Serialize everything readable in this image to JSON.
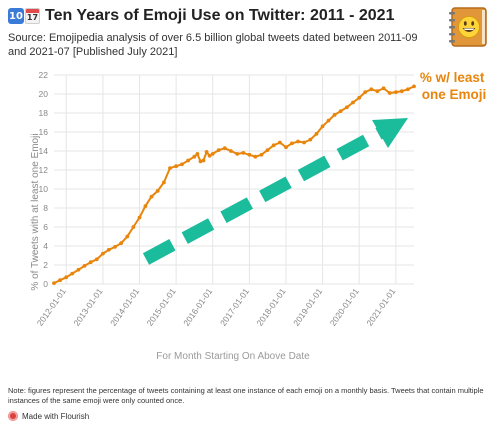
{
  "header": {
    "title": "Ten Years of Emoji Use on Twitter: 2011 - 2021",
    "icon_number": "10",
    "icon_calendar_day": "17",
    "subtitle": "Source: Emojipedia analysis of over 6.5 billion global tweets dated between 2011-09 and 2021-07 [Published July 2021]",
    "logo_icon": "notebook-grinning-face-icon"
  },
  "footer": {
    "note": "Note: figures represent the percentage of tweets containing at least one instance of each emoji on a monthly basis. Tweets that contain multiple instances of the same emoji were only counted once.",
    "credit": "Made with Flourish"
  },
  "colors": {
    "line": "#e8850c",
    "arrow": "#1abc9c",
    "annotation": "#e8850c",
    "grid": "#e6e6e6"
  },
  "chart_data": {
    "type": "line",
    "title": "Ten Years of Emoji Use on Twitter: 2011 - 2021",
    "xlabel": "For Month Starting On Above Date",
    "ylabel": "% of Tweets with at least one Emoji",
    "ylim": [
      0,
      22
    ],
    "yticks": [
      0,
      2,
      4,
      6,
      8,
      10,
      12,
      14,
      16,
      18,
      20,
      22
    ],
    "xlim": [
      "2011-09-01",
      "2021-07-01"
    ],
    "xticks": [
      "2012-01-01",
      "2013-01-01",
      "2014-01-01",
      "2015-01-01",
      "2016-01-01",
      "2017-01-01",
      "2018-01-01",
      "2019-01-01",
      "2020-01-01",
      "2021-01-01"
    ],
    "grid": true,
    "annotation": {
      "text_line1": "% w/ least",
      "text_line2": "one Emoji"
    },
    "series": [
      {
        "markers": true,
        "points": [
          [
            "2011-09-01",
            0.1
          ],
          [
            "2011-11-01",
            0.4
          ],
          [
            "2012-01-01",
            0.7
          ],
          [
            "2012-03-01",
            1.1
          ],
          [
            "2012-05-01",
            1.5
          ],
          [
            "2012-07-01",
            1.9
          ],
          [
            "2012-09-01",
            2.3
          ],
          [
            "2012-11-01",
            2.6
          ],
          [
            "2013-01-01",
            3.2
          ],
          [
            "2013-03-01",
            3.6
          ],
          [
            "2013-05-01",
            3.9
          ],
          [
            "2013-07-01",
            4.3
          ],
          [
            "2013-09-01",
            5.0
          ],
          [
            "2013-11-01",
            6.0
          ],
          [
            "2014-01-01",
            7.0
          ],
          [
            "2014-03-01",
            8.2
          ],
          [
            "2014-05-01",
            9.2
          ],
          [
            "2014-07-01",
            9.8
          ],
          [
            "2014-09-01",
            10.7
          ],
          [
            "2014-11-01",
            12.2
          ],
          [
            "2015-01-01",
            12.4
          ],
          [
            "2015-03-01",
            12.6
          ],
          [
            "2015-05-01",
            13.0
          ],
          [
            "2015-07-01",
            13.4
          ],
          [
            "2015-08-01",
            13.7
          ],
          [
            "2015-09-01",
            12.9
          ],
          [
            "2015-10-01",
            13.0
          ],
          [
            "2015-11-01",
            13.9
          ],
          [
            "2015-12-01",
            13.5
          ],
          [
            "2016-01-01",
            13.7
          ],
          [
            "2016-03-01",
            14.1
          ],
          [
            "2016-05-01",
            14.3
          ],
          [
            "2016-07-01",
            14.0
          ],
          [
            "2016-09-01",
            13.7
          ],
          [
            "2016-11-01",
            13.8
          ],
          [
            "2017-01-01",
            13.6
          ],
          [
            "2017-03-01",
            13.4
          ],
          [
            "2017-05-01",
            13.6
          ],
          [
            "2017-07-01",
            14.1
          ],
          [
            "2017-09-01",
            14.6
          ],
          [
            "2017-11-01",
            14.9
          ],
          [
            "2018-01-01",
            14.4
          ],
          [
            "2018-03-01",
            14.8
          ],
          [
            "2018-05-01",
            15.0
          ],
          [
            "2018-07-01",
            14.9
          ],
          [
            "2018-09-01",
            15.2
          ],
          [
            "2018-11-01",
            15.8
          ],
          [
            "2019-01-01",
            16.6
          ],
          [
            "2019-03-01",
            17.2
          ],
          [
            "2019-05-01",
            17.8
          ],
          [
            "2019-07-01",
            18.2
          ],
          [
            "2019-09-01",
            18.6
          ],
          [
            "2019-11-01",
            19.1
          ],
          [
            "2020-01-01",
            19.6
          ],
          [
            "2020-03-01",
            20.2
          ],
          [
            "2020-05-01",
            20.5
          ],
          [
            "2020-07-01",
            20.3
          ],
          [
            "2020-09-01",
            20.6
          ],
          [
            "2020-11-01",
            20.1
          ],
          [
            "2021-01-01",
            20.2
          ],
          [
            "2021-03-01",
            20.3
          ],
          [
            "2021-05-01",
            20.5
          ],
          [
            "2021-07-01",
            20.8
          ]
        ]
      }
    ]
  }
}
